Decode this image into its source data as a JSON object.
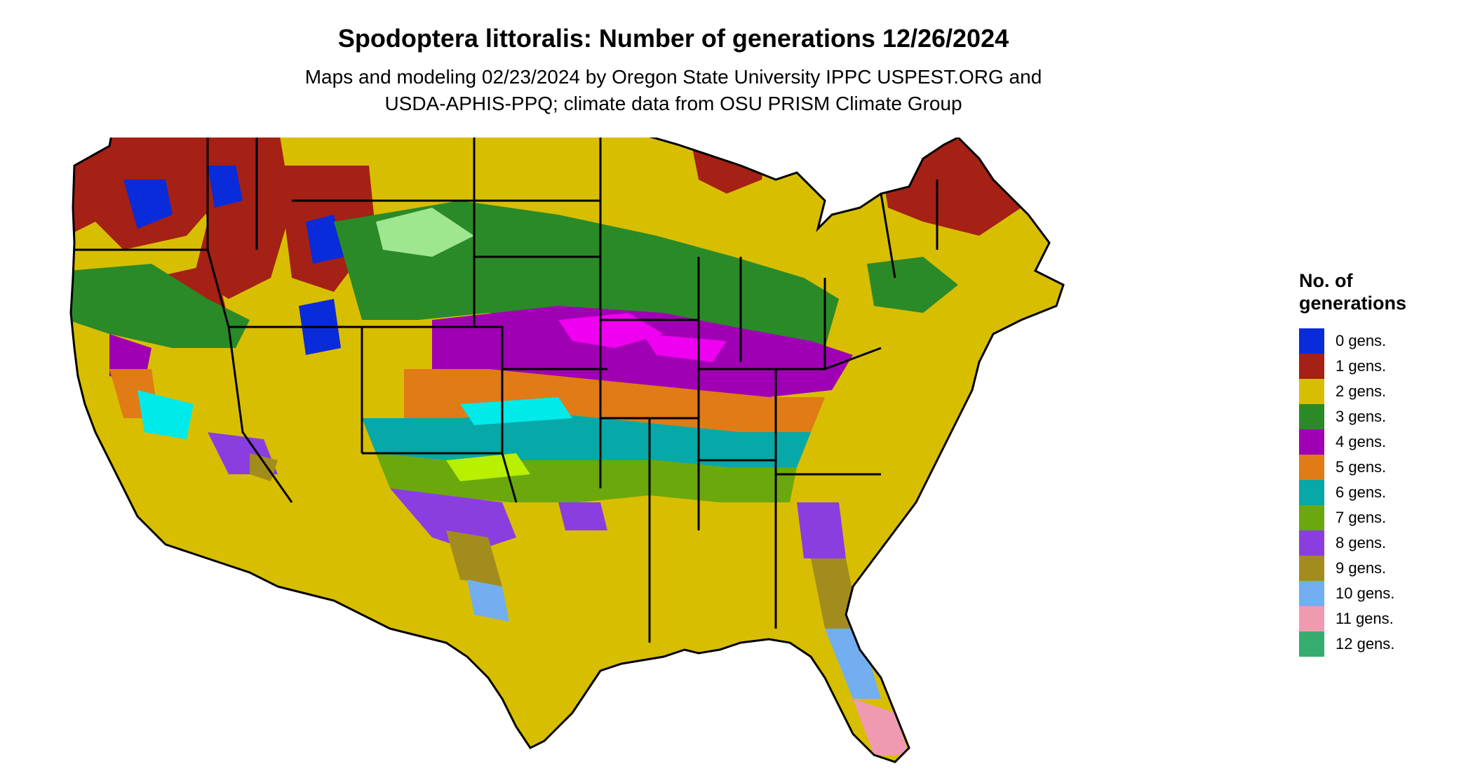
{
  "title": "Spodoptera littoralis: Number of generations 12/26/2024",
  "subtitle_line1": "Maps and modeling 02/23/2024 by Oregon State University IPPC USPEST.ORG and",
  "subtitle_line2": "USDA-APHIS-PPQ; climate data from OSU PRISM Climate Group",
  "legend": {
    "title_line1": "No. of",
    "title_line2": "generations",
    "items": [
      {
        "label": "0 gens.",
        "color": "#0a2bd9"
      },
      {
        "label": "1 gens.",
        "color": "#a52015"
      },
      {
        "label": "2 gens.",
        "color": "#d8be00"
      },
      {
        "label": "3 gens.",
        "color": "#2a8a28"
      },
      {
        "label": "4 gens.",
        "color": "#a000b4"
      },
      {
        "label": "5 gens.",
        "color": "#e07b16"
      },
      {
        "label": "6 gens.",
        "color": "#06a8a8"
      },
      {
        "label": "7 gens.",
        "color": "#6aa80e"
      },
      {
        "label": "8 gens.",
        "color": "#8a3ee0"
      },
      {
        "label": "9 gens.",
        "color": "#a38c1e"
      },
      {
        "label": "10 gens.",
        "color": "#72aef0"
      },
      {
        "label": "11 gens.",
        "color": "#f09ab2"
      },
      {
        "label": "12 gens.",
        "color": "#36ad6e"
      }
    ]
  },
  "map": {
    "region": "Contiguous United States",
    "boundaries": "state-lines"
  }
}
